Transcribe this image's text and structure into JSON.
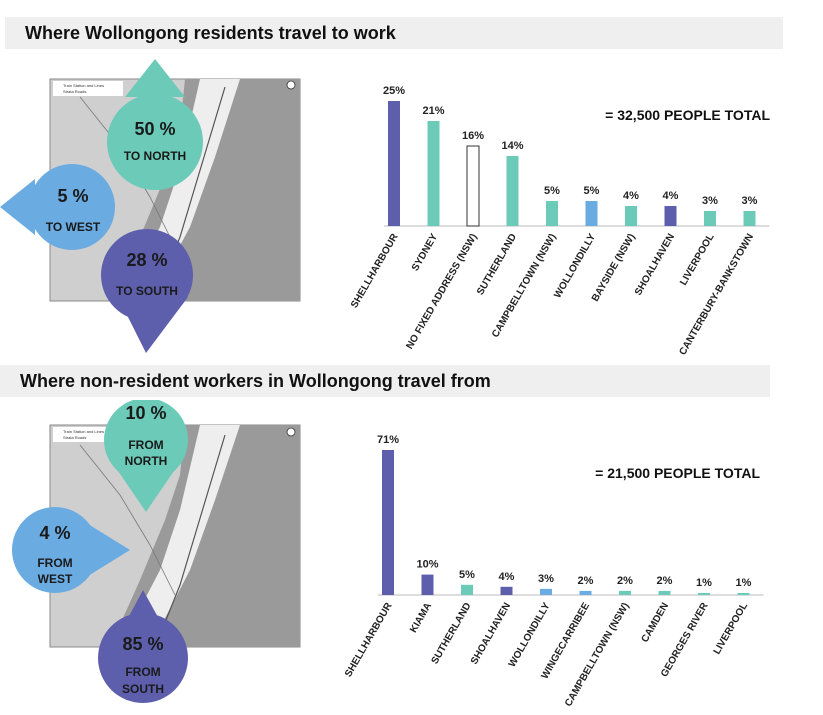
{
  "colors": {
    "purple": "#5d5fad",
    "teal": "#6ccbb8",
    "blue": "#6aabe1",
    "outline": "#ffffff",
    "header_bg": "#efefef"
  },
  "sections": [
    {
      "heading": "Where Wollongong residents travel to work",
      "map_legend": [
        "Train Station and Lines",
        "Strata Roads"
      ],
      "bubbles": {
        "north": {
          "pct": "50 %",
          "label": "TO NORTH"
        },
        "west": {
          "pct": "5 %",
          "label": "TO WEST"
        },
        "south": {
          "pct": "28 %",
          "label": "TO SOUTH"
        }
      }
    },
    {
      "heading": "Where non-resident workers in Wollongong travel from",
      "map_legend": [
        "Train Station and Lines",
        "Strata Roads"
      ],
      "bubbles": {
        "north": {
          "pct": "10 %",
          "label1": "FROM",
          "label2": "NORTH"
        },
        "west": {
          "pct": "4 %",
          "label1": "FROM",
          "label2": "WEST"
        },
        "south": {
          "pct": "85 %",
          "label1": "FROM",
          "label2": "SOUTH"
        }
      }
    }
  ],
  "chart_data": [
    {
      "type": "bar",
      "title": "= 32,500 PEOPLE TOTAL",
      "categories": [
        "SHELLHARBOUR",
        "SYDNEY",
        "NO FIXED ADDRESS (NSW)",
        "SUTHERLAND",
        "CAMPBELLTOWN (NSW)",
        "WOLLONDILLY",
        "BAYSIDE (NSW)",
        "SHOALHAVEN",
        "LIVERPOOL",
        "CANTERBURY-BANKSTOWN"
      ],
      "values": [
        25,
        21,
        16,
        14,
        5,
        5,
        4,
        4,
        3,
        3
      ],
      "value_labels": [
        "25%",
        "21%",
        "16%",
        "14%",
        "5%",
        "5%",
        "4%",
        "4%",
        "3%",
        "3%"
      ],
      "bar_colors": [
        "purple",
        "teal",
        "outline",
        "teal",
        "teal",
        "blue",
        "teal",
        "purple",
        "teal",
        "teal"
      ],
      "ylim": [
        0,
        25
      ],
      "xlabel": "",
      "ylabel": ""
    },
    {
      "type": "bar",
      "title": "= 21,500 PEOPLE TOTAL",
      "categories": [
        "SHELLHARBOUR",
        "KIAMA",
        "SUTHERLAND",
        "SHOALHAVEN",
        "WOLLONDILLY",
        "WINGECARRIBEE",
        "CAMPBELLTOWN (NSW)",
        "CAMDEN",
        "GEORGES RIVER",
        "LIVERPOOL"
      ],
      "values": [
        71,
        10,
        5,
        4,
        3,
        2,
        2,
        2,
        1,
        1
      ],
      "value_labels": [
        "71%",
        "10%",
        "5%",
        "4%",
        "3%",
        "2%",
        "2%",
        "2%",
        "1%",
        "1%"
      ],
      "bar_colors": [
        "purple",
        "purple",
        "teal",
        "purple",
        "blue",
        "blue",
        "teal",
        "teal",
        "teal",
        "teal"
      ],
      "ylim": [
        0,
        71
      ],
      "xlabel": "",
      "ylabel": ""
    }
  ]
}
